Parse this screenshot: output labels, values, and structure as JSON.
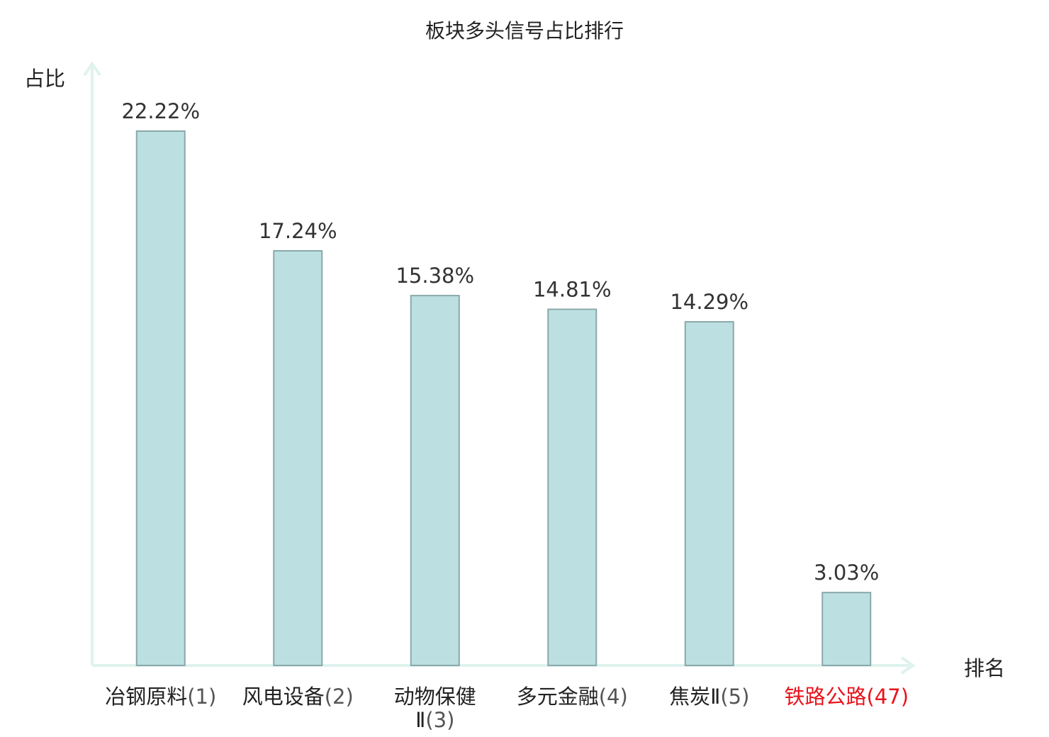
{
  "chart_data": {
    "type": "bar",
    "title": "板块多头信号占比排行",
    "ylabel": "占比",
    "xlabel": "排名",
    "ylim": [
      0,
      25
    ],
    "categories": [
      {
        "name": "冶钢原料",
        "rank": "(1)",
        "highlight": false
      },
      {
        "name": "风电设备",
        "rank": "(2)",
        "highlight": false
      },
      {
        "name": "动物保健Ⅱ",
        "rank": "(3)",
        "highlight": false
      },
      {
        "name": "多元金融",
        "rank": "(4)",
        "highlight": false
      },
      {
        "name": "焦炭Ⅱ",
        "rank": "(5)",
        "highlight": false
      },
      {
        "name": "铁路公路",
        "rank": "(47)",
        "highlight": true
      }
    ],
    "values": [
      22.22,
      17.24,
      15.38,
      14.81,
      14.29,
      3.03
    ],
    "value_labels": [
      "22.22%",
      "17.24%",
      "15.38%",
      "14.81%",
      "14.29%",
      "3.03%"
    ],
    "grid": false,
    "legend": "none",
    "colors": {
      "bar_fill": "#bce0e2",
      "bar_stroke": "#8aa8aa",
      "axis": "#dff2ee",
      "highlight_text": "#e8141c",
      "rank_text": "#555555",
      "text": "#222222"
    }
  }
}
